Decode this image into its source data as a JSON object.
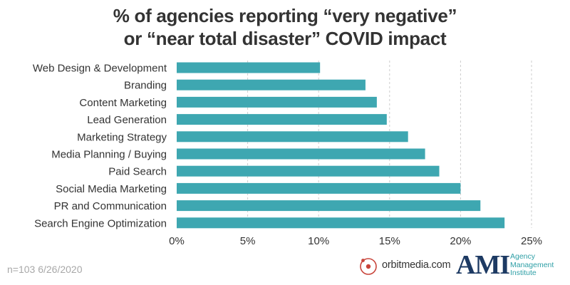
{
  "chart_data": {
    "type": "bar",
    "orientation": "horizontal",
    "title": [
      "% of agencies reporting “very negative”",
      "or “near total disaster” COVID impact"
    ],
    "categories": [
      "Web Design & Development",
      "Branding",
      "Content Marketing",
      "Lead Generation",
      "Marketing Strategy",
      "Media Planning / Buying",
      "Paid Search",
      "Social Media Marketing",
      "PR and Communication",
      "Search Engine Optimization"
    ],
    "values": [
      10.1,
      13.3,
      14.1,
      14.8,
      16.3,
      17.5,
      18.5,
      20.0,
      21.4,
      23.1
    ],
    "xlim": [
      0,
      25
    ],
    "x_ticks": [
      "0%",
      "5%",
      "10%",
      "15%",
      "20%",
      "25%"
    ],
    "grid": "vertical dashed",
    "bar_color": "#3ea7b1"
  },
  "footnote": "n=103 6/26/2020",
  "logos": {
    "orbit": "orbitmedia.com",
    "ami_letters": "AMI",
    "ami_words": [
      "Agency",
      "Management",
      "Institute"
    ]
  },
  "colors": {
    "text": "#333333",
    "grid": "#cccccc",
    "orbit_red": "#c8443a",
    "ami_navy": "#1d3a63",
    "ami_teal": "#2e9fa6"
  }
}
